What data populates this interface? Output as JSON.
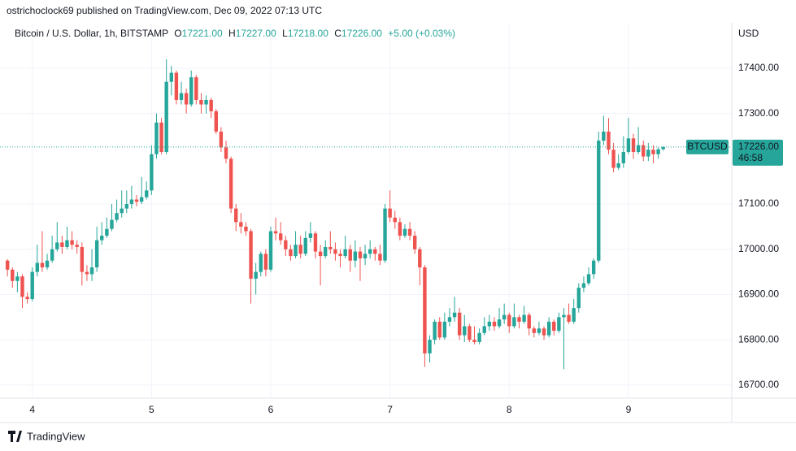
{
  "header": {
    "byline": "ostrichoclock69 published on TradingView.com, Dec 09, 2022 07:13 UTC"
  },
  "chart_data": {
    "type": "candlestick",
    "symbol": "Bitcoin / U.S. Dollar, 1h, BITSTAMP",
    "legend": {
      "o_label": "O",
      "o": {
        "value": 17221,
        "label": "17221.00"
      },
      "h_label": "H",
      "h": {
        "value": 17227,
        "label": "17227.00"
      },
      "l_label": "L",
      "l": {
        "value": 17218,
        "label": "17218.00"
      },
      "c_label": "C",
      "c": {
        "value": 17226,
        "label": "17226.00"
      },
      "change": "+5.00 (+0.03%)"
    },
    "currency": "USD",
    "ticker": "BTCUSD",
    "last_price": {
      "value": 17226,
      "label": "17226.00"
    },
    "countdown": "46:58",
    "colors": {
      "up": "#26a69a",
      "down": "#ef5350"
    },
    "xlim": [
      -1.5,
      145.8
    ],
    "xticks": [
      {
        "value": 5,
        "label": "4"
      },
      {
        "value": 29,
        "label": "5"
      },
      {
        "value": 53,
        "label": "6"
      },
      {
        "value": 77,
        "label": "7"
      },
      {
        "value": 101,
        "label": "8"
      },
      {
        "value": 125,
        "label": "9"
      }
    ],
    "ylim": [
      16671,
      17500.5
    ],
    "yticks": [
      {
        "value": 16700,
        "label": "16700.00"
      },
      {
        "value": 16800,
        "label": "16800.00"
      },
      {
        "value": 16900,
        "label": "16900.00"
      },
      {
        "value": 17000,
        "label": "17000.00"
      },
      {
        "value": 17100,
        "label": "17100.00"
      },
      {
        "value": 17300,
        "label": "17300.00"
      },
      {
        "value": 17400,
        "label": "17400.00"
      }
    ],
    "open": [
      16975,
      16955,
      16930,
      16940,
      16895,
      16890,
      16950,
      16970,
      16960,
      16975,
      17000,
      17015,
      17005,
      17020,
      17010,
      17005,
      16950,
      16945,
      16960,
      17020,
      17030,
      17045,
      17065,
      17080,
      17090,
      17100,
      17110,
      17105,
      17115,
      17130,
      17210,
      17280,
      17215,
      17370,
      17390,
      17330,
      17345,
      17320,
      17380,
      17330,
      17320,
      17330,
      17305,
      17260,
      17225,
      17200,
      17090,
      17060,
      17050,
      17040,
      16935,
      16950,
      16990,
      16955,
      17040,
      17035,
      17020,
      17000,
      16985,
      17010,
      16990,
      17025,
      17035,
      16995,
      16985,
      17005,
      17000,
      16990,
      16985,
      17000,
      16975,
      16995,
      16980,
      16990,
      17000,
      16990,
      16975,
      17090,
      17070,
      17060,
      17030,
      17045,
      17030,
      17000,
      16960,
      16770,
      16800,
      16840,
      16805,
      16840,
      16850,
      16860,
      16810,
      16830,
      16800,
      16795,
      16815,
      16830,
      16840,
      16830,
      16845,
      16855,
      16830,
      16850,
      16840,
      16855,
      16825,
      16815,
      16825,
      16810,
      16840,
      16820,
      16850,
      16855,
      16840,
      16870,
      16915,
      16925,
      16945,
      16975,
      17240,
      17260,
      17220,
      17180,
      17190,
      17215,
      17245,
      17215,
      17230,
      17205,
      17220,
      17210,
      17221
    ],
    "high": [
      16978,
      16960,
      16950,
      16945,
      16905,
      16960,
      17010,
      17040,
      16990,
      17030,
      17060,
      17030,
      17050,
      17040,
      17020,
      17015,
      16965,
      17000,
      17050,
      17060,
      17070,
      17100,
      17110,
      17130,
      17130,
      17140,
      17120,
      17160,
      17150,
      17230,
      17300,
      17290,
      17420,
      17405,
      17395,
      17370,
      17355,
      17395,
      17385,
      17345,
      17340,
      17335,
      17310,
      17270,
      17240,
      17205,
      17100,
      17080,
      17060,
      17045,
      16970,
      16995,
      17000,
      17050,
      17070,
      17060,
      17030,
      17010,
      17040,
      17030,
      17040,
      17060,
      17040,
      17010,
      17020,
      17040,
      17015,
      17000,
      17030,
      17010,
      17020,
      17005,
      17010,
      17020,
      17005,
      17010,
      17100,
      17130,
      17085,
      17070,
      17055,
      17060,
      17040,
      17005,
      16965,
      16810,
      16845,
      16850,
      16860,
      16870,
      16895,
      16870,
      16855,
      16835,
      16830,
      16825,
      16850,
      16855,
      16850,
      16870,
      16880,
      16860,
      16880,
      16855,
      16875,
      16860,
      16830,
      16840,
      16830,
      16850,
      16845,
      16860,
      16870,
      16880,
      16890,
      16925,
      16940,
      16960,
      16980,
      17260,
      17295,
      17290,
      17235,
      17210,
      17250,
      17290,
      17255,
      17270,
      17240,
      17235,
      17230,
      17225,
      17227
    ],
    "low": [
      16940,
      16915,
      16905,
      16870,
      16880,
      16885,
      16940,
      16950,
      16955,
      16970,
      16995,
      16990,
      17000,
      17000,
      16990,
      16920,
      16930,
      16930,
      16950,
      17010,
      17025,
      17040,
      17060,
      17070,
      17080,
      17090,
      17095,
      17100,
      17110,
      17120,
      17200,
      17210,
      17210,
      17340,
      17320,
      17320,
      17300,
      17315,
      17320,
      17300,
      17300,
      17290,
      17255,
      17215,
      17190,
      17080,
      17040,
      17035,
      17030,
      16880,
      16900,
      16940,
      16940,
      16950,
      17020,
      17010,
      16985,
      16975,
      16980,
      16980,
      16985,
      17015,
      16980,
      16920,
      16980,
      16990,
      16975,
      16960,
      16980,
      16950,
      16960,
      16930,
      16965,
      16980,
      16975,
      16965,
      16970,
      17060,
      17045,
      17020,
      17025,
      17020,
      16990,
      16920,
      16740,
      16750,
      16790,
      16800,
      16800,
      16830,
      16840,
      16800,
      16795,
      16795,
      16790,
      16790,
      16810,
      16820,
      16820,
      16825,
      16835,
      16815,
      16825,
      16825,
      16835,
      16810,
      16805,
      16810,
      16800,
      16805,
      16810,
      16815,
      16735,
      16835,
      16835,
      16860,
      16905,
      16920,
      16935,
      16970,
      17230,
      17210,
      17170,
      17175,
      17180,
      17210,
      17200,
      17210,
      17195,
      17195,
      17190,
      17200,
      17218
    ],
    "close": [
      16955,
      16930,
      16940,
      16895,
      16890,
      16950,
      16970,
      16960,
      16975,
      17000,
      17015,
      17005,
      17020,
      17010,
      17005,
      16950,
      16945,
      16960,
      17020,
      17030,
      17045,
      17065,
      17080,
      17090,
      17100,
      17110,
      17105,
      17115,
      17130,
      17210,
      17280,
      17215,
      17370,
      17390,
      17330,
      17345,
      17320,
      17380,
      17330,
      17320,
      17330,
      17305,
      17260,
      17225,
      17200,
      17090,
      17060,
      17050,
      17040,
      16935,
      16950,
      16990,
      16955,
      17040,
      17035,
      17020,
      17000,
      16985,
      17010,
      16990,
      17025,
      17035,
      16995,
      16985,
      17005,
      17000,
      16990,
      16985,
      17000,
      16975,
      16995,
      16980,
      16990,
      17000,
      16990,
      16975,
      17090,
      17070,
      17060,
      17030,
      17045,
      17030,
      17000,
      16960,
      16770,
      16800,
      16840,
      16805,
      16840,
      16850,
      16860,
      16810,
      16830,
      16800,
      16795,
      16815,
      16830,
      16840,
      16830,
      16845,
      16855,
      16830,
      16850,
      16840,
      16855,
      16825,
      16815,
      16825,
      16810,
      16840,
      16820,
      16850,
      16855,
      16840,
      16870,
      16915,
      16925,
      16945,
      16975,
      17240,
      17260,
      17220,
      17180,
      17190,
      17215,
      17245,
      17215,
      17230,
      17205,
      17220,
      17210,
      17221,
      17226
    ]
  },
  "footer": {
    "brand": "TradingView"
  }
}
